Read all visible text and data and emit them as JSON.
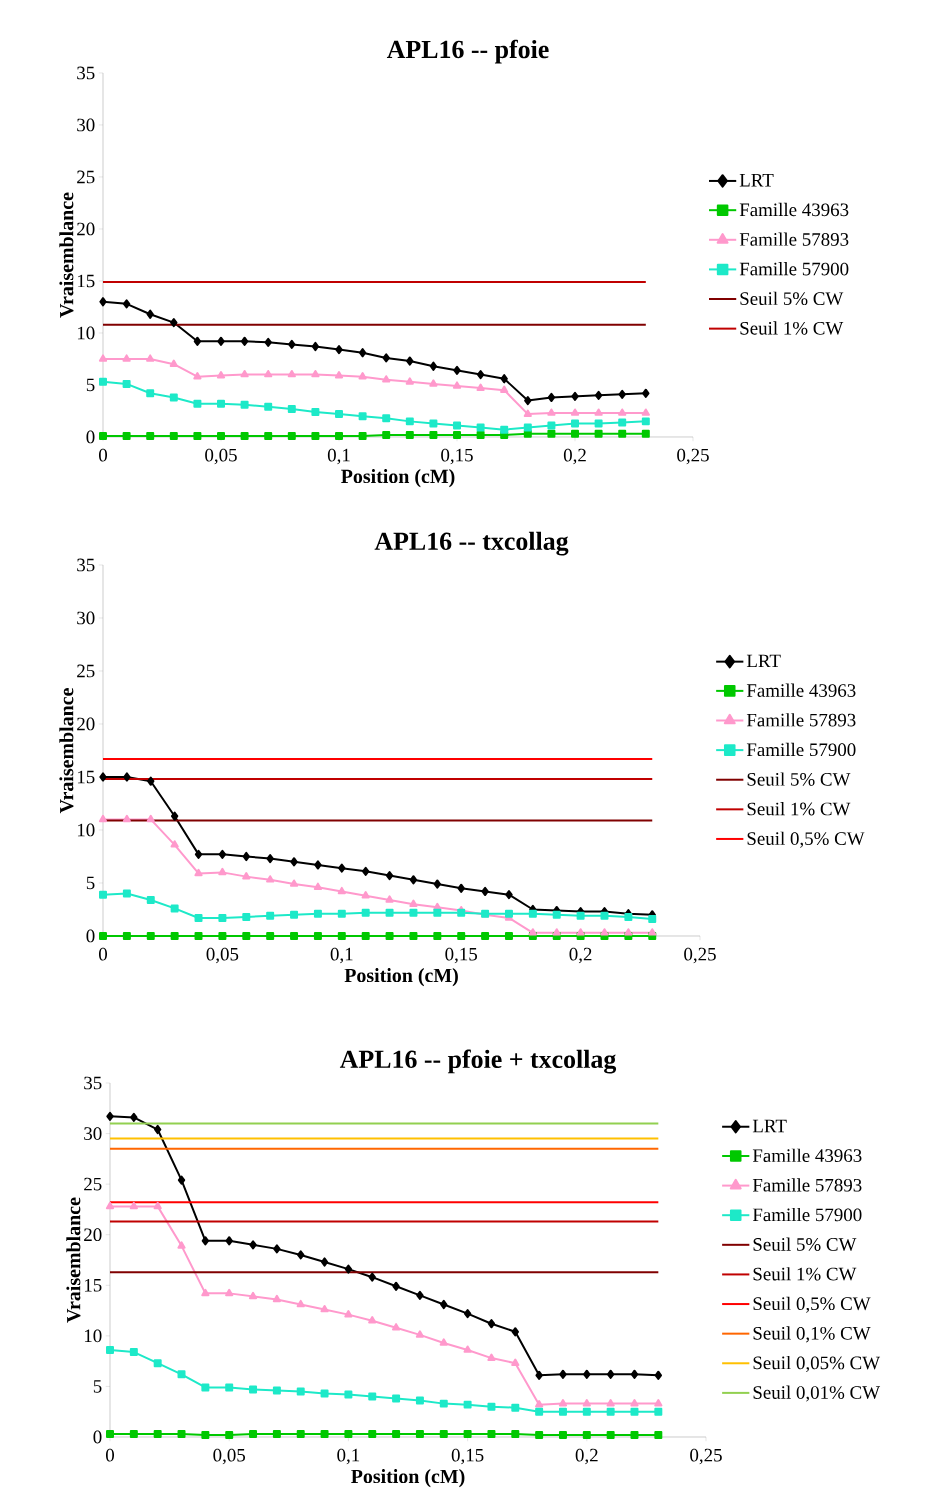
{
  "chart_data": [
    {
      "type": "line",
      "title": "APL16 -- pfoie",
      "xlabel": "Position (cM)",
      "ylabel": "Vraisemblance",
      "xlim": [
        0,
        0.25
      ],
      "ylim": [
        0,
        35
      ],
      "xticks": [
        0,
        {
          "value": 0.05,
          "label": "0,05"
        },
        {
          "value": 0.1,
          "label": "0,1"
        },
        {
          "value": 0.15,
          "label": "0,15"
        },
        {
          "value": 0.2,
          "label": "0,2"
        },
        {
          "value": 0.25,
          "label": "0,25"
        }
      ],
      "yticks": [
        0,
        5,
        10,
        15,
        20,
        25,
        30,
        35
      ],
      "legend": "right",
      "x": [
        0,
        0.01,
        0.02,
        0.03,
        0.04,
        0.05,
        0.06,
        0.07,
        0.08,
        0.09,
        0.1,
        0.11,
        0.12,
        0.13,
        0.14,
        0.15,
        0.16,
        0.17,
        0.18,
        0.19,
        0.2,
        0.21,
        0.22,
        0.23
      ],
      "series": [
        {
          "name": "LRT",
          "color": "#000000",
          "marker": "diamond",
          "values": [
            13.0,
            12.8,
            11.8,
            11.0,
            9.2,
            9.2,
            9.2,
            9.1,
            8.9,
            8.7,
            8.4,
            8.1,
            7.6,
            7.3,
            6.8,
            6.4,
            6.0,
            5.6,
            3.5,
            3.8,
            3.9,
            4.0,
            4.1,
            4.2
          ]
        },
        {
          "name": "Famille 43963",
          "color": "#00c800",
          "marker": "square",
          "values": [
            0.1,
            0.1,
            0.1,
            0.1,
            0.1,
            0.1,
            0.1,
            0.1,
            0.1,
            0.1,
            0.1,
            0.1,
            0.2,
            0.2,
            0.2,
            0.2,
            0.2,
            0.2,
            0.3,
            0.3,
            0.3,
            0.3,
            0.3,
            0.3
          ]
        },
        {
          "name": "Famille 57893",
          "color": "#ff99cc",
          "marker": "triangle",
          "values": [
            7.5,
            7.5,
            7.5,
            7.0,
            5.8,
            5.9,
            6.0,
            6.0,
            6.0,
            6.0,
            5.9,
            5.8,
            5.5,
            5.3,
            5.1,
            4.9,
            4.7,
            4.5,
            2.2,
            2.3,
            2.3,
            2.3,
            2.3,
            2.3
          ]
        },
        {
          "name": "Famille 57900",
          "color": "#1de9c8",
          "marker": "square",
          "values": [
            5.3,
            5.1,
            4.2,
            3.8,
            3.2,
            3.2,
            3.1,
            2.9,
            2.7,
            2.4,
            2.2,
            2.0,
            1.8,
            1.5,
            1.3,
            1.1,
            0.9,
            0.7,
            0.9,
            1.1,
            1.3,
            1.3,
            1.4,
            1.5
          ]
        },
        {
          "name": "Seuil 5% CW",
          "color": "#800000",
          "marker": "none",
          "values": [
            10.8,
            10.8,
            10.8,
            10.8,
            10.8,
            10.8,
            10.8,
            10.8,
            10.8,
            10.8,
            10.8,
            10.8,
            10.8,
            10.8,
            10.8,
            10.8,
            10.8,
            10.8,
            10.8,
            10.8,
            10.8,
            10.8,
            10.8,
            10.8
          ]
        },
        {
          "name": "Seuil 1% CW",
          "color": "#c00000",
          "marker": "none",
          "values": [
            14.9,
            14.9,
            14.9,
            14.9,
            14.9,
            14.9,
            14.9,
            14.9,
            14.9,
            14.9,
            14.9,
            14.9,
            14.9,
            14.9,
            14.9,
            14.9,
            14.9,
            14.9,
            14.9,
            14.9,
            14.9,
            14.9,
            14.9,
            14.9
          ]
        }
      ]
    },
    {
      "type": "line",
      "title": "APL16 -- txcollag",
      "xlabel": "Position (cM)",
      "ylabel": "Vraisemblance",
      "xlim": [
        0,
        0.25
      ],
      "ylim": [
        0,
        35
      ],
      "xticks": [
        0,
        {
          "value": 0.05,
          "label": "0,05"
        },
        {
          "value": 0.1,
          "label": "0,1"
        },
        {
          "value": 0.15,
          "label": "0,15"
        },
        {
          "value": 0.2,
          "label": "0,2"
        },
        {
          "value": 0.25,
          "label": "0,25"
        }
      ],
      "yticks": [
        0,
        5,
        10,
        15,
        20,
        25,
        30,
        35
      ],
      "legend": "right",
      "x": [
        0,
        0.01,
        0.02,
        0.03,
        0.04,
        0.05,
        0.06,
        0.07,
        0.08,
        0.09,
        0.1,
        0.11,
        0.12,
        0.13,
        0.14,
        0.15,
        0.16,
        0.17,
        0.18,
        0.19,
        0.2,
        0.21,
        0.22,
        0.23
      ],
      "series": [
        {
          "name": "LRT",
          "color": "#000000",
          "marker": "diamond",
          "values": [
            15.0,
            15.0,
            14.6,
            11.3,
            7.7,
            7.7,
            7.5,
            7.3,
            7.0,
            6.7,
            6.4,
            6.1,
            5.7,
            5.3,
            4.9,
            4.5,
            4.2,
            3.9,
            2.5,
            2.4,
            2.3,
            2.3,
            2.1,
            2.0
          ]
        },
        {
          "name": "Famille 43963",
          "color": "#00c800",
          "marker": "square",
          "values": [
            0,
            0,
            0,
            0,
            0,
            0,
            0,
            0,
            0,
            0,
            0,
            0,
            0,
            0,
            0,
            0,
            0,
            0,
            0,
            0,
            0,
            0,
            0,
            0
          ]
        },
        {
          "name": "Famille 57893",
          "color": "#ff99cc",
          "marker": "triangle",
          "values": [
            11.0,
            11.0,
            11.0,
            8.6,
            5.9,
            6.0,
            5.6,
            5.3,
            4.9,
            4.6,
            4.2,
            3.8,
            3.4,
            3.0,
            2.7,
            2.4,
            2.0,
            1.7,
            0.3,
            0.3,
            0.3,
            0.3,
            0.3,
            0.3
          ]
        },
        {
          "name": "Famille 57900",
          "color": "#1de9c8",
          "marker": "square",
          "values": [
            3.9,
            4.0,
            3.4,
            2.6,
            1.7,
            1.7,
            1.8,
            1.9,
            2.0,
            2.1,
            2.1,
            2.2,
            2.2,
            2.2,
            2.2,
            2.2,
            2.1,
            2.1,
            2.1,
            2.0,
            1.9,
            1.9,
            1.8,
            1.6
          ]
        },
        {
          "name": "Seuil 5% CW",
          "color": "#800000",
          "marker": "none",
          "values": [
            10.9,
            10.9,
            10.9,
            10.9,
            10.9,
            10.9,
            10.9,
            10.9,
            10.9,
            10.9,
            10.9,
            10.9,
            10.9,
            10.9,
            10.9,
            10.9,
            10.9,
            10.9,
            10.9,
            10.9,
            10.9,
            10.9,
            10.9,
            10.9
          ]
        },
        {
          "name": "Seuil 1% CW",
          "color": "#c00000",
          "marker": "none",
          "values": [
            14.8,
            14.8,
            14.8,
            14.8,
            14.8,
            14.8,
            14.8,
            14.8,
            14.8,
            14.8,
            14.8,
            14.8,
            14.8,
            14.8,
            14.8,
            14.8,
            14.8,
            14.8,
            14.8,
            14.8,
            14.8,
            14.8,
            14.8,
            14.8
          ]
        },
        {
          "name": "Seuil 0,5% CW",
          "color": "#ff0000",
          "marker": "none",
          "values": [
            16.7,
            16.7,
            16.7,
            16.7,
            16.7,
            16.7,
            16.7,
            16.7,
            16.7,
            16.7,
            16.7,
            16.7,
            16.7,
            16.7,
            16.7,
            16.7,
            16.7,
            16.7,
            16.7,
            16.7,
            16.7,
            16.7,
            16.7,
            16.7
          ]
        }
      ]
    },
    {
      "type": "line",
      "title": "APL16 -- pfoie + txcollag",
      "xlabel": "Position (cM)",
      "ylabel": "Vraisemblance",
      "xlim": [
        0,
        0.25
      ],
      "ylim": [
        0,
        35
      ],
      "xticks": [
        0,
        {
          "value": 0.05,
          "label": "0,05"
        },
        {
          "value": 0.1,
          "label": "0,1"
        },
        {
          "value": 0.15,
          "label": "0,15"
        },
        {
          "value": 0.2,
          "label": "0,2"
        },
        {
          "value": 0.25,
          "label": "0,25"
        }
      ],
      "yticks": [
        0,
        5,
        10,
        15,
        20,
        25,
        30,
        35
      ],
      "legend": "right",
      "x": [
        0,
        0.01,
        0.02,
        0.03,
        0.04,
        0.05,
        0.06,
        0.07,
        0.08,
        0.09,
        0.1,
        0.11,
        0.12,
        0.13,
        0.14,
        0.15,
        0.16,
        0.17,
        0.18,
        0.19,
        0.2,
        0.21,
        0.22,
        0.23
      ],
      "series": [
        {
          "name": "LRT",
          "color": "#000000",
          "marker": "diamond",
          "values": [
            31.7,
            31.6,
            30.4,
            25.4,
            19.4,
            19.4,
            19.0,
            18.6,
            18.0,
            17.3,
            16.6,
            15.8,
            14.9,
            14.0,
            13.1,
            12.2,
            11.2,
            10.4,
            6.1,
            6.2,
            6.2,
            6.2,
            6.2,
            6.1
          ]
        },
        {
          "name": "Famille 43963",
          "color": "#00c800",
          "marker": "square",
          "values": [
            0.3,
            0.3,
            0.3,
            0.3,
            0.2,
            0.2,
            0.3,
            0.3,
            0.3,
            0.3,
            0.3,
            0.3,
            0.3,
            0.3,
            0.3,
            0.3,
            0.3,
            0.3,
            0.2,
            0.2,
            0.2,
            0.2,
            0.2,
            0.2
          ]
        },
        {
          "name": "Famille 57893",
          "color": "#ff99cc",
          "marker": "triangle",
          "values": [
            22.8,
            22.8,
            22.8,
            18.9,
            14.2,
            14.2,
            13.9,
            13.6,
            13.1,
            12.6,
            12.1,
            11.5,
            10.8,
            10.1,
            9.3,
            8.6,
            7.8,
            7.3,
            3.2,
            3.3,
            3.3,
            3.3,
            3.3,
            3.3
          ]
        },
        {
          "name": "Famille 57900",
          "color": "#1de9c8",
          "marker": "square",
          "values": [
            8.6,
            8.4,
            7.3,
            6.2,
            4.9,
            4.9,
            4.7,
            4.6,
            4.5,
            4.3,
            4.2,
            4.0,
            3.8,
            3.6,
            3.3,
            3.2,
            3.0,
            2.9,
            2.5,
            2.5,
            2.5,
            2.5,
            2.5,
            2.5
          ]
        },
        {
          "name": "Seuil 5% CW",
          "color": "#800000",
          "marker": "none",
          "values": [
            16.3,
            16.3,
            16.3,
            16.3,
            16.3,
            16.3,
            16.3,
            16.3,
            16.3,
            16.3,
            16.3,
            16.3,
            16.3,
            16.3,
            16.3,
            16.3,
            16.3,
            16.3,
            16.3,
            16.3,
            16.3,
            16.3,
            16.3,
            16.3
          ]
        },
        {
          "name": "Seuil 1% CW",
          "color": "#c00000",
          "marker": "none",
          "values": [
            21.3,
            21.3,
            21.3,
            21.3,
            21.3,
            21.3,
            21.3,
            21.3,
            21.3,
            21.3,
            21.3,
            21.3,
            21.3,
            21.3,
            21.3,
            21.3,
            21.3,
            21.3,
            21.3,
            21.3,
            21.3,
            21.3,
            21.3,
            21.3
          ]
        },
        {
          "name": "Seuil 0,5% CW",
          "color": "#ff0000",
          "marker": "none",
          "values": [
            23.2,
            23.2,
            23.2,
            23.2,
            23.2,
            23.2,
            23.2,
            23.2,
            23.2,
            23.2,
            23.2,
            23.2,
            23.2,
            23.2,
            23.2,
            23.2,
            23.2,
            23.2,
            23.2,
            23.2,
            23.2,
            23.2,
            23.2,
            23.2
          ]
        },
        {
          "name": "Seuil 0,1% CW",
          "color": "#ff6600",
          "marker": "none",
          "values": [
            28.5,
            28.5,
            28.5,
            28.5,
            28.5,
            28.5,
            28.5,
            28.5,
            28.5,
            28.5,
            28.5,
            28.5,
            28.5,
            28.5,
            28.5,
            28.5,
            28.5,
            28.5,
            28.5,
            28.5,
            28.5,
            28.5,
            28.5,
            28.5
          ]
        },
        {
          "name": "Seuil 0,05% CW",
          "color": "#ffc000",
          "marker": "none",
          "values": [
            29.5,
            29.5,
            29.5,
            29.5,
            29.5,
            29.5,
            29.5,
            29.5,
            29.5,
            29.5,
            29.5,
            29.5,
            29.5,
            29.5,
            29.5,
            29.5,
            29.5,
            29.5,
            29.5,
            29.5,
            29.5,
            29.5,
            29.5,
            29.5
          ]
        },
        {
          "name": "Seuil 0,01% CW",
          "color": "#92d050",
          "marker": "none",
          "values": [
            31.0,
            31.0,
            31.0,
            31.0,
            31.0,
            31.0,
            31.0,
            31.0,
            31.0,
            31.0,
            31.0,
            31.0,
            31.0,
            31.0,
            31.0,
            31.0,
            31.0,
            31.0,
            31.0,
            31.0,
            31.0,
            31.0,
            31.0,
            31.0
          ]
        }
      ]
    }
  ]
}
